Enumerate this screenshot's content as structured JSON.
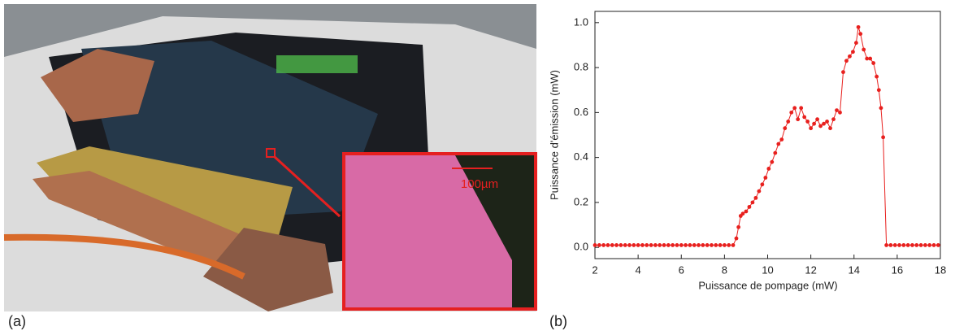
{
  "panel_labels": [
    "(a)",
    "(b)"
  ],
  "photo_annotation": "100µm",
  "chart_data": {
    "type": "line",
    "xlabel": "Puissance de pompage (mW)",
    "ylabel": "Puissance d'émission (mW)",
    "x": [
      2.0,
      2.2,
      2.4,
      2.6,
      2.8,
      3.0,
      3.2,
      3.4,
      3.6,
      3.8,
      4.0,
      4.2,
      4.4,
      4.6,
      4.8,
      5.0,
      5.2,
      5.4,
      5.6,
      5.8,
      6.0,
      6.2,
      6.4,
      6.6,
      6.8,
      7.0,
      7.2,
      7.4,
      7.6,
      7.8,
      8.0,
      8.2,
      8.4,
      8.55,
      8.65,
      8.75,
      8.85,
      9.0,
      9.15,
      9.3,
      9.45,
      9.6,
      9.75,
      9.9,
      10.05,
      10.2,
      10.35,
      10.5,
      10.65,
      10.8,
      10.95,
      11.1,
      11.25,
      11.4,
      11.55,
      11.7,
      11.85,
      12.0,
      12.15,
      12.3,
      12.45,
      12.6,
      12.75,
      12.9,
      13.05,
      13.2,
      13.35,
      13.5,
      13.65,
      13.8,
      13.95,
      14.1,
      14.2,
      14.3,
      14.45,
      14.6,
      14.75,
      14.9,
      15.05,
      15.15,
      15.25,
      15.35,
      15.5,
      15.7,
      15.9,
      16.1,
      16.3,
      16.5,
      16.7,
      16.9,
      17.1,
      17.3,
      17.5,
      17.7,
      17.9
    ],
    "series": [
      {
        "color": "#e8201e",
        "values": [
          0.01,
          0.01,
          0.01,
          0.01,
          0.01,
          0.01,
          0.01,
          0.01,
          0.01,
          0.01,
          0.01,
          0.01,
          0.01,
          0.01,
          0.01,
          0.01,
          0.01,
          0.01,
          0.01,
          0.01,
          0.01,
          0.01,
          0.01,
          0.01,
          0.01,
          0.01,
          0.01,
          0.01,
          0.01,
          0.01,
          0.01,
          0.01,
          0.01,
          0.04,
          0.09,
          0.14,
          0.15,
          0.16,
          0.18,
          0.2,
          0.22,
          0.25,
          0.28,
          0.31,
          0.35,
          0.38,
          0.42,
          0.46,
          0.48,
          0.53,
          0.56,
          0.6,
          0.62,
          0.57,
          0.62,
          0.58,
          0.56,
          0.53,
          0.55,
          0.57,
          0.54,
          0.55,
          0.56,
          0.53,
          0.57,
          0.61,
          0.6,
          0.78,
          0.83,
          0.85,
          0.87,
          0.91,
          0.98,
          0.95,
          0.88,
          0.84,
          0.84,
          0.82,
          0.76,
          0.7,
          0.62,
          0.49,
          0.01,
          0.01,
          0.01,
          0.01,
          0.01,
          0.01,
          0.01,
          0.01,
          0.01,
          0.01,
          0.01,
          0.01,
          0.01
        ]
      }
    ],
    "xlim": [
      2,
      18
    ],
    "ylim": [
      -0.05,
      1.05
    ],
    "xticks": [
      2,
      4,
      6,
      8,
      10,
      12,
      14,
      16,
      18
    ],
    "yticks": [
      {
        "value": 0,
        "label": "0.0"
      },
      {
        "value": 0.2,
        "label": "0.2"
      },
      {
        "value": 0.4,
        "label": "0.4"
      },
      {
        "value": 0.6,
        "label": "0.6"
      },
      {
        "value": 0.8,
        "label": "0.8"
      },
      {
        "value": 1,
        "label": "1.0"
      }
    ]
  }
}
